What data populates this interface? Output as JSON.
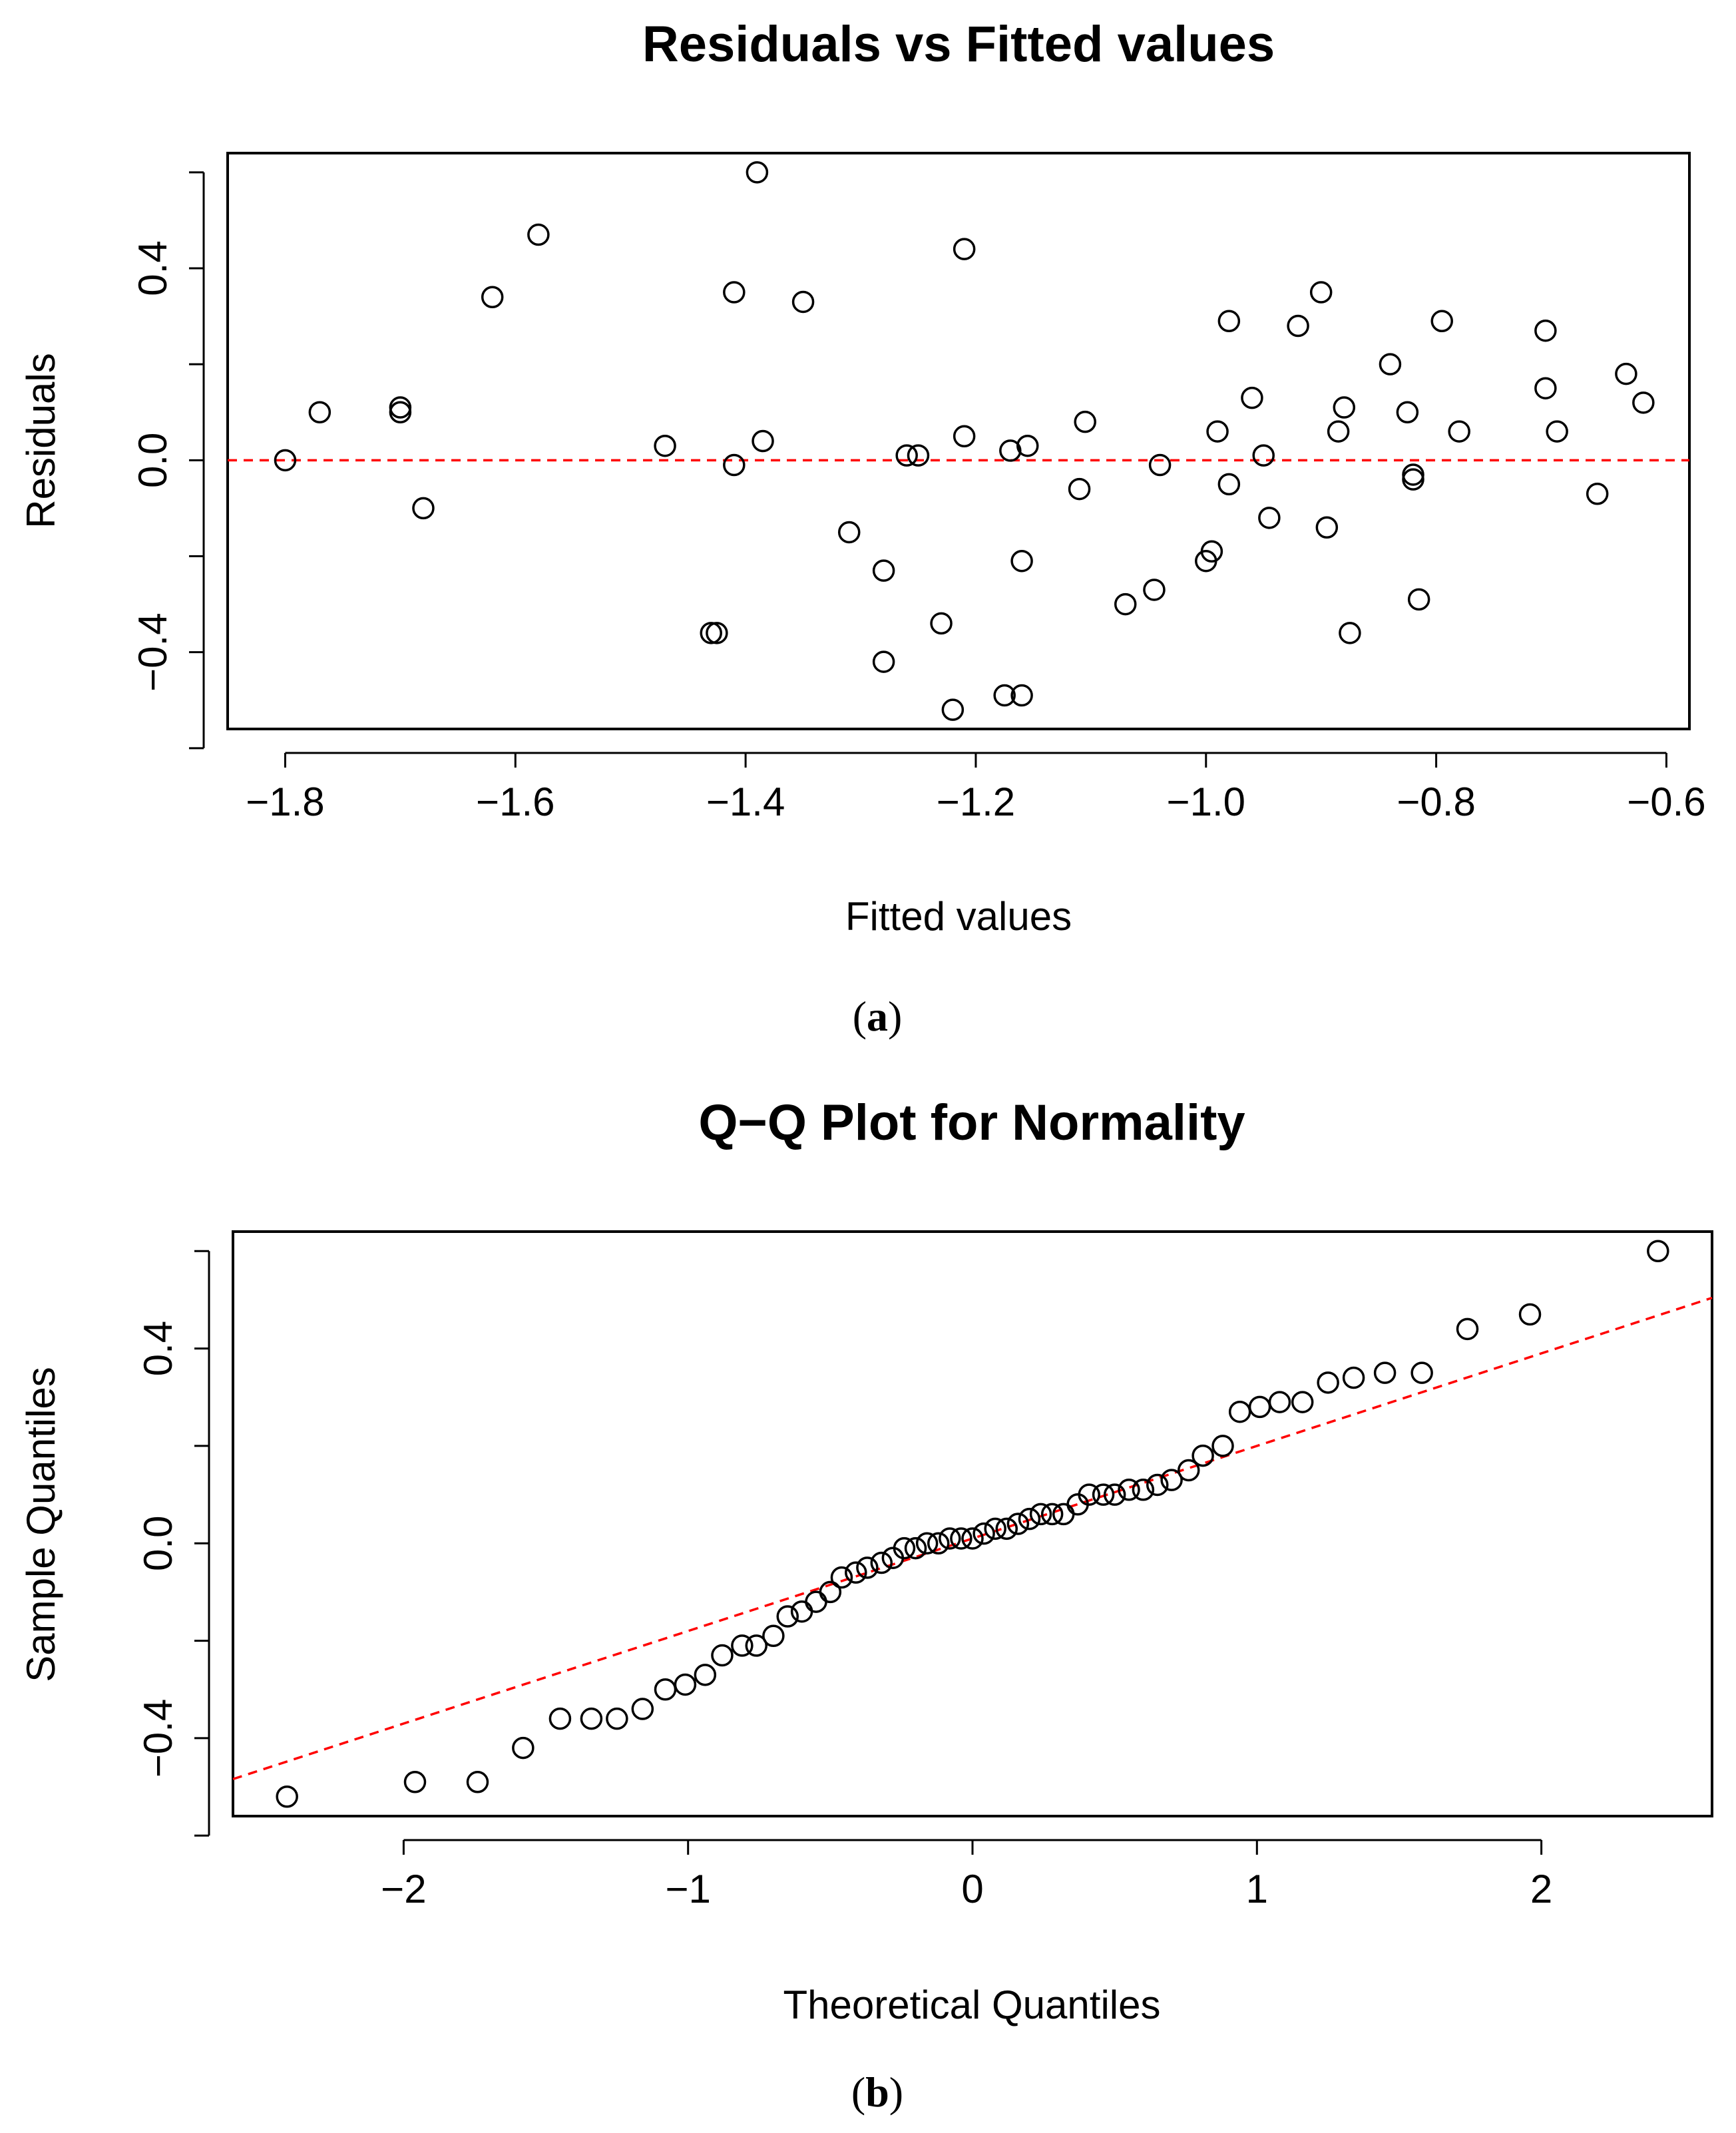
{
  "chart_data": [
    {
      "type": "scatter",
      "title": "Residuals vs Fitted values",
      "xlabel": "Fitted values",
      "ylabel": "Residuals",
      "caption": "a",
      "xlim": [
        -1.85,
        -0.58
      ],
      "ylim": [
        -0.56,
        0.64
      ],
      "xticks": [
        -1.8,
        -1.6,
        -1.4,
        -1.2,
        -1.0,
        -0.8,
        -0.6
      ],
      "xtick_labels": [
        "−1.8",
        "−1.6",
        "−1.4",
        "−1.2",
        "−1.0",
        "−0.8",
        "−0.6"
      ],
      "yticks": [
        -0.6,
        -0.4,
        -0.2,
        0.0,
        0.2,
        0.4,
        0.6
      ],
      "ytick_labels": [
        "",
        "−0.4",
        "",
        "0.0",
        "",
        "0.4",
        ""
      ],
      "reference_line": {
        "type": "horizontal",
        "y": 0,
        "color": "#ff0000",
        "style": "dashed"
      },
      "points": [
        {
          "x": -1.8,
          "y": 0.0
        },
        {
          "x": -1.77,
          "y": 0.1
        },
        {
          "x": -1.7,
          "y": 0.11
        },
        {
          "x": -1.7,
          "y": 0.1
        },
        {
          "x": -1.68,
          "y": -0.1
        },
        {
          "x": -1.62,
          "y": 0.34
        },
        {
          "x": -1.58,
          "y": 0.47
        },
        {
          "x": -1.47,
          "y": 0.03
        },
        {
          "x": -1.43,
          "y": -0.36
        },
        {
          "x": -1.425,
          "y": -0.36
        },
        {
          "x": -1.41,
          "y": 0.35
        },
        {
          "x": -1.41,
          "y": -0.01
        },
        {
          "x": -1.39,
          "y": 0.6
        },
        {
          "x": -1.385,
          "y": 0.04
        },
        {
          "x": -1.35,
          "y": 0.33
        },
        {
          "x": -1.31,
          "y": -0.15
        },
        {
          "x": -1.28,
          "y": -0.23
        },
        {
          "x": -1.28,
          "y": -0.42
        },
        {
          "x": -1.26,
          "y": 0.01
        },
        {
          "x": -1.25,
          "y": 0.01
        },
        {
          "x": -1.23,
          "y": -0.34
        },
        {
          "x": -1.22,
          "y": -0.52
        },
        {
          "x": -1.21,
          "y": 0.44
        },
        {
          "x": -1.21,
          "y": 0.05
        },
        {
          "x": -1.175,
          "y": -0.49
        },
        {
          "x": -1.17,
          "y": 0.02
        },
        {
          "x": -1.16,
          "y": -0.49
        },
        {
          "x": -1.16,
          "y": -0.21
        },
        {
          "x": -1.155,
          "y": 0.03
        },
        {
          "x": -1.11,
          "y": -0.06
        },
        {
          "x": -1.105,
          "y": 0.08
        },
        {
          "x": -1.07,
          "y": -0.3
        },
        {
          "x": -1.045,
          "y": -0.27
        },
        {
          "x": -1.04,
          "y": -0.01
        },
        {
          "x": -1.0,
          "y": -0.21
        },
        {
          "x": -0.995,
          "y": -0.19
        },
        {
          "x": -0.99,
          "y": 0.06
        },
        {
          "x": -0.98,
          "y": 0.29
        },
        {
          "x": -0.98,
          "y": -0.05
        },
        {
          "x": -0.96,
          "y": 0.13
        },
        {
          "x": -0.95,
          "y": 0.01
        },
        {
          "x": -0.945,
          "y": -0.12
        },
        {
          "x": -0.92,
          "y": 0.28
        },
        {
          "x": -0.9,
          "y": 0.35
        },
        {
          "x": -0.895,
          "y": -0.14
        },
        {
          "x": -0.885,
          "y": 0.06
        },
        {
          "x": -0.88,
          "y": 0.11
        },
        {
          "x": -0.875,
          "y": -0.36
        },
        {
          "x": -0.84,
          "y": 0.2
        },
        {
          "x": -0.825,
          "y": 0.1
        },
        {
          "x": -0.82,
          "y": -0.03
        },
        {
          "x": -0.82,
          "y": -0.04
        },
        {
          "x": -0.815,
          "y": -0.29
        },
        {
          "x": -0.795,
          "y": 0.29
        },
        {
          "x": -0.78,
          "y": 0.06
        },
        {
          "x": -0.705,
          "y": 0.27
        },
        {
          "x": -0.705,
          "y": 0.15
        },
        {
          "x": -0.695,
          "y": 0.06
        },
        {
          "x": -0.66,
          "y": -0.07
        },
        {
          "x": -0.635,
          "y": 0.18
        },
        {
          "x": -0.62,
          "y": 0.12
        }
      ]
    },
    {
      "type": "scatter",
      "title": "Q−Q Plot for Normality",
      "xlabel": "Theoretical Quantiles",
      "ylabel": "Sample Quantiles",
      "caption": "b",
      "xlim": [
        -2.6,
        2.6
      ],
      "ylim": [
        -0.56,
        0.64
      ],
      "xticks": [
        -2,
        -1,
        0,
        1,
        2
      ],
      "xtick_labels": [
        "−2",
        "−1",
        "0",
        "1",
        "2"
      ],
      "yticks": [
        -0.6,
        -0.4,
        -0.2,
        0.0,
        0.2,
        0.4,
        0.6
      ],
      "ytick_labels": [
        "",
        "−0.4",
        "",
        "0.0",
        "",
        "0.4",
        ""
      ],
      "reference_line": {
        "type": "qqline",
        "intercept": 0.01,
        "slope": 0.19,
        "color": "#ff0000",
        "style": "dashed"
      },
      "points": [
        {
          "x": -2.41,
          "y": -0.52
        },
        {
          "x": -1.96,
          "y": -0.49
        },
        {
          "x": -1.74,
          "y": -0.49
        },
        {
          "x": -1.58,
          "y": -0.42
        },
        {
          "x": -1.45,
          "y": -0.36
        },
        {
          "x": -1.34,
          "y": -0.36
        },
        {
          "x": -1.25,
          "y": -0.36
        },
        {
          "x": -1.16,
          "y": -0.34
        },
        {
          "x": -1.08,
          "y": -0.3
        },
        {
          "x": -1.01,
          "y": -0.29
        },
        {
          "x": -0.94,
          "y": -0.27
        },
        {
          "x": -0.88,
          "y": -0.23
        },
        {
          "x": -0.81,
          "y": -0.21
        },
        {
          "x": -0.76,
          "y": -0.21
        },
        {
          "x": -0.7,
          "y": -0.19
        },
        {
          "x": -0.65,
          "y": -0.15
        },
        {
          "x": -0.6,
          "y": -0.14
        },
        {
          "x": -0.55,
          "y": -0.12
        },
        {
          "x": -0.5,
          "y": -0.1
        },
        {
          "x": -0.46,
          "y": -0.07
        },
        {
          "x": -0.41,
          "y": -0.06
        },
        {
          "x": -0.37,
          "y": -0.05
        },
        {
          "x": -0.32,
          "y": -0.04
        },
        {
          "x": -0.28,
          "y": -0.03
        },
        {
          "x": -0.24,
          "y": -0.01
        },
        {
          "x": -0.2,
          "y": -0.01
        },
        {
          "x": -0.16,
          "y": 0.0
        },
        {
          "x": -0.12,
          "y": 0.0
        },
        {
          "x": -0.08,
          "y": 0.01
        },
        {
          "x": -0.04,
          "y": 0.01
        },
        {
          "x": 0.0,
          "y": 0.01
        },
        {
          "x": 0.04,
          "y": 0.02
        },
        {
          "x": 0.08,
          "y": 0.03
        },
        {
          "x": 0.12,
          "y": 0.03
        },
        {
          "x": 0.16,
          "y": 0.04
        },
        {
          "x": 0.2,
          "y": 0.05
        },
        {
          "x": 0.24,
          "y": 0.06
        },
        {
          "x": 0.28,
          "y": 0.06
        },
        {
          "x": 0.32,
          "y": 0.06
        },
        {
          "x": 0.37,
          "y": 0.08
        },
        {
          "x": 0.41,
          "y": 0.1
        },
        {
          "x": 0.46,
          "y": 0.1
        },
        {
          "x": 0.5,
          "y": 0.1
        },
        {
          "x": 0.55,
          "y": 0.11
        },
        {
          "x": 0.6,
          "y": 0.11
        },
        {
          "x": 0.65,
          "y": 0.12
        },
        {
          "x": 0.7,
          "y": 0.13
        },
        {
          "x": 0.76,
          "y": 0.15
        },
        {
          "x": 0.81,
          "y": 0.18
        },
        {
          "x": 0.88,
          "y": 0.2
        },
        {
          "x": 0.94,
          "y": 0.27
        },
        {
          "x": 1.01,
          "y": 0.28
        },
        {
          "x": 1.08,
          "y": 0.29
        },
        {
          "x": 1.16,
          "y": 0.29
        },
        {
          "x": 1.25,
          "y": 0.33
        },
        {
          "x": 1.34,
          "y": 0.34
        },
        {
          "x": 1.45,
          "y": 0.35
        },
        {
          "x": 1.58,
          "y": 0.35
        },
        {
          "x": 1.74,
          "y": 0.44
        },
        {
          "x": 1.96,
          "y": 0.47
        },
        {
          "x": 2.41,
          "y": 0.6
        }
      ]
    }
  ],
  "colors": {
    "reference_line": "#ff0000",
    "points": "#000000",
    "axes": "#000000"
  }
}
